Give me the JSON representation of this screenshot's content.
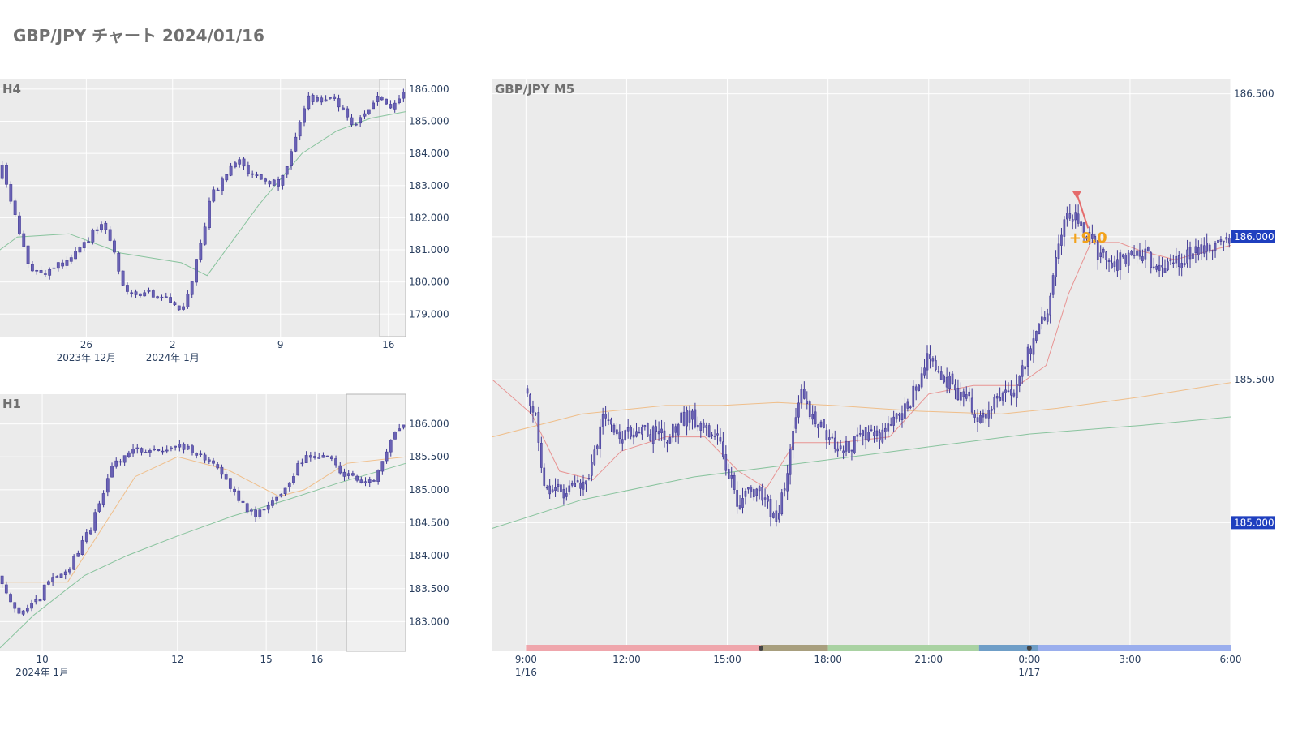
{
  "page": {
    "title": "GBP/JPY チャート 2024/01/16"
  },
  "colors": {
    "plot_bg": "#ebebeb",
    "candle": "#6a62b4",
    "candle_edge": "#3f3794",
    "ma_short": "#e88a88",
    "ma_mid": "#f0b980",
    "ma_long": "#7dbf95",
    "price_tag": "#1f3fbf",
    "annotation": "#f2a21b",
    "arrow": "#e56b6b",
    "session_tokyo": "#efa6ac",
    "session_overlap1": "#a89f7e",
    "session_london": "#a9d2a2",
    "session_overlap2": "#6f9ec7",
    "session_ny": "#9aaeed"
  },
  "chart_data": [
    {
      "id": "h4",
      "type": "candlestick",
      "title": "H4",
      "ylim": [
        178.3,
        186.3
      ],
      "y_ticks": [
        179.0,
        180.0,
        181.0,
        182.0,
        183.0,
        184.0,
        185.0,
        186.0
      ],
      "x_ticks": [
        {
          "label": "26",
          "sublabel": "2023年 12月",
          "x": 22
        },
        {
          "label": "2",
          "sublabel": "2024年 1月",
          "x": 42
        },
        {
          "label": "9",
          "sublabel": "",
          "x": 67
        },
        {
          "label": "16",
          "sublabel": "",
          "x": 92
        }
      ],
      "x_range": [
        2,
        96
      ],
      "highlight_x": [
        90,
        96
      ],
      "candles": {
        "count": 96,
        "start": 181.2,
        "points": [
          [
            0,
            181.2
          ],
          [
            2,
            184.0
          ],
          [
            4,
            182.8
          ],
          [
            9,
            180.4
          ],
          [
            13,
            180.3
          ],
          [
            18,
            180.7
          ],
          [
            26,
            181.9
          ],
          [
            31,
            179.8
          ],
          [
            40,
            179.5
          ],
          [
            44,
            179.1
          ],
          [
            47,
            180.3
          ],
          [
            51,
            182.7
          ],
          [
            57,
            183.8
          ],
          [
            61,
            183.3
          ],
          [
            67,
            183.0
          ],
          [
            73,
            185.7
          ],
          [
            80,
            185.6
          ],
          [
            84,
            184.7
          ],
          [
            89,
            185.8
          ],
          [
            92,
            185.4
          ],
          [
            96,
            186.0
          ]
        ]
      },
      "ma": [
        {
          "color": "ma_long",
          "points": [
            [
              0,
              180.8
            ],
            [
              6,
              181.4
            ],
            [
              18,
              181.5
            ],
            [
              30,
              180.9
            ],
            [
              44,
              180.6
            ],
            [
              50,
              180.2
            ],
            [
              62,
              182.4
            ],
            [
              72,
              184.0
            ],
            [
              80,
              184.7
            ],
            [
              88,
              185.1
            ],
            [
              96,
              185.3
            ]
          ]
        }
      ]
    },
    {
      "id": "h1",
      "type": "candlestick",
      "title": "H1",
      "ylim": [
        182.55,
        186.45
      ],
      "y_ticks": [
        183.0,
        183.5,
        184.0,
        184.5,
        185.0,
        185.5,
        186.0
      ],
      "x_ticks": [
        {
          "label": "10",
          "sublabel": "2024年 1月",
          "x": 10
        },
        {
          "label": "12",
          "sublabel": "",
          "x": 42
        },
        {
          "label": "15",
          "sublabel": "",
          "x": 63
        },
        {
          "label": "16",
          "sublabel": "",
          "x": 75
        }
      ],
      "x_range": [
        0,
        96
      ],
      "highlight_x": [
        82,
        96
      ],
      "candles": {
        "count": 96,
        "start": 183.7,
        "points": [
          [
            0,
            183.7
          ],
          [
            4,
            183.1
          ],
          [
            9,
            183.3
          ],
          [
            12,
            183.7
          ],
          [
            16,
            183.8
          ],
          [
            22,
            184.5
          ],
          [
            26,
            185.3
          ],
          [
            30,
            185.6
          ],
          [
            36,
            185.6
          ],
          [
            42,
            185.7
          ],
          [
            50,
            185.4
          ],
          [
            56,
            184.9
          ],
          [
            60,
            184.6
          ],
          [
            66,
            184.9
          ],
          [
            72,
            185.5
          ],
          [
            78,
            185.5
          ],
          [
            82,
            185.2
          ],
          [
            88,
            185.1
          ],
          [
            93,
            185.8
          ],
          [
            96,
            186.0
          ]
        ]
      },
      "ma": [
        {
          "color": "ma_mid",
          "points": [
            [
              0,
              183.6
            ],
            [
              16,
              183.6
            ],
            [
              24,
              184.4
            ],
            [
              32,
              185.2
            ],
            [
              42,
              185.5
            ],
            [
              54,
              185.3
            ],
            [
              60,
              185.1
            ],
            [
              66,
              184.9
            ],
            [
              72,
              185.0
            ],
            [
              82,
              185.4
            ],
            [
              96,
              185.5
            ]
          ]
        },
        {
          "color": "ma_long",
          "points": [
            [
              0,
              182.6
            ],
            [
              8,
              183.1
            ],
            [
              20,
              183.7
            ],
            [
              30,
              184.0
            ],
            [
              42,
              184.3
            ],
            [
              55,
              184.6
            ],
            [
              68,
              184.85
            ],
            [
              80,
              185.1
            ],
            [
              96,
              185.4
            ]
          ]
        }
      ]
    },
    {
      "id": "m5",
      "type": "candlestick",
      "title": "GBP/JPY M5",
      "ylim": [
        184.55,
        186.55
      ],
      "y_ticks": [
        185.0,
        185.5,
        186.0,
        186.5
      ],
      "y_tick_format": "3",
      "price_tags": [
        186.0,
        185.0
      ],
      "x_ticks": [
        {
          "label": "9:00",
          "sublabel": "1/16",
          "x": 0
        },
        {
          "label": "12:00",
          "sublabel": "",
          "x": 36
        },
        {
          "label": "15:00",
          "sublabel": "",
          "x": 72
        },
        {
          "label": "18:00",
          "sublabel": "",
          "x": 108
        },
        {
          "label": "21:00",
          "sublabel": "",
          "x": 144
        },
        {
          "label": "0:00",
          "sublabel": "1/17",
          "x": 180
        },
        {
          "label": "3:00",
          "sublabel": "",
          "x": 216
        },
        {
          "label": "6:00",
          "sublabel": "",
          "x": 252
        }
      ],
      "x_range": [
        -12,
        252
      ],
      "candles": {
        "count": 264,
        "start": 185.47,
        "points": [
          [
            0,
            185.47
          ],
          [
            3,
            185.4
          ],
          [
            6,
            185.12
          ],
          [
            14,
            185.1
          ],
          [
            22,
            185.15
          ],
          [
            28,
            185.4
          ],
          [
            34,
            185.3
          ],
          [
            40,
            185.32
          ],
          [
            50,
            185.3
          ],
          [
            58,
            185.38
          ],
          [
            68,
            185.3
          ],
          [
            76,
            185.07
          ],
          [
            82,
            185.12
          ],
          [
            90,
            185.0
          ],
          [
            98,
            185.45
          ],
          [
            104,
            185.35
          ],
          [
            112,
            185.25
          ],
          [
            120,
            185.3
          ],
          [
            128,
            185.3
          ],
          [
            136,
            185.4
          ],
          [
            144,
            185.58
          ],
          [
            150,
            185.5
          ],
          [
            158,
            185.42
          ],
          [
            164,
            185.35
          ],
          [
            168,
            185.42
          ],
          [
            174,
            185.45
          ],
          [
            180,
            185.6
          ],
          [
            186,
            185.72
          ],
          [
            190,
            185.95
          ],
          [
            194,
            186.1
          ],
          [
            198,
            186.05
          ],
          [
            204,
            185.95
          ],
          [
            210,
            185.9
          ],
          [
            218,
            185.95
          ],
          [
            226,
            185.9
          ],
          [
            232,
            185.9
          ],
          [
            238,
            185.95
          ],
          [
            252,
            186.0
          ]
        ]
      },
      "ma": [
        {
          "color": "ma_short",
          "points": [
            [
              -12,
              185.5
            ],
            [
              2,
              185.38
            ],
            [
              12,
              185.18
            ],
            [
              24,
              185.15
            ],
            [
              34,
              185.25
            ],
            [
              50,
              185.3
            ],
            [
              64,
              185.3
            ],
            [
              76,
              185.18
            ],
            [
              86,
              185.12
            ],
            [
              96,
              185.28
            ],
            [
              112,
              185.28
            ],
            [
              130,
              185.3
            ],
            [
              144,
              185.45
            ],
            [
              160,
              185.48
            ],
            [
              176,
              185.48
            ],
            [
              186,
              185.55
            ],
            [
              194,
              185.8
            ],
            [
              202,
              185.98
            ],
            [
              212,
              185.98
            ],
            [
              220,
              185.95
            ],
            [
              232,
              185.92
            ],
            [
              252,
              185.97
            ]
          ]
        },
        {
          "color": "ma_mid",
          "points": [
            [
              -12,
              185.3
            ],
            [
              20,
              185.38
            ],
            [
              50,
              185.41
            ],
            [
              70,
              185.41
            ],
            [
              90,
              185.42
            ],
            [
              110,
              185.41
            ],
            [
              140,
              185.39
            ],
            [
              170,
              185.38
            ],
            [
              190,
              185.4
            ],
            [
              220,
              185.44
            ],
            [
              252,
              185.49
            ]
          ]
        },
        {
          "color": "ma_long",
          "points": [
            [
              -12,
              184.98
            ],
            [
              20,
              185.08
            ],
            [
              60,
              185.16
            ],
            [
              100,
              185.21
            ],
            [
              140,
              185.26
            ],
            [
              180,
              185.31
            ],
            [
              220,
              185.34
            ],
            [
              252,
              185.37
            ]
          ]
        }
      ],
      "annotation": {
        "text": "+9.0",
        "x_from": 197,
        "y_from": 186.15,
        "x_to": 201,
        "y_to": 186.03,
        "x": 201,
        "y": 186.0
      },
      "sessions": [
        {
          "color": "session_tokyo",
          "x_start": 0,
          "x_end": 84
        },
        {
          "color": "session_overlap1",
          "x_start": 84,
          "x_end": 108
        },
        {
          "color": "session_london",
          "x_start": 108,
          "x_end": 162
        },
        {
          "color": "session_overlap2",
          "x_start": 162,
          "x_end": 183
        },
        {
          "color": "session_ny",
          "x_start": 183,
          "x_end": 252
        }
      ],
      "session_dots": [
        84,
        180
      ]
    }
  ]
}
